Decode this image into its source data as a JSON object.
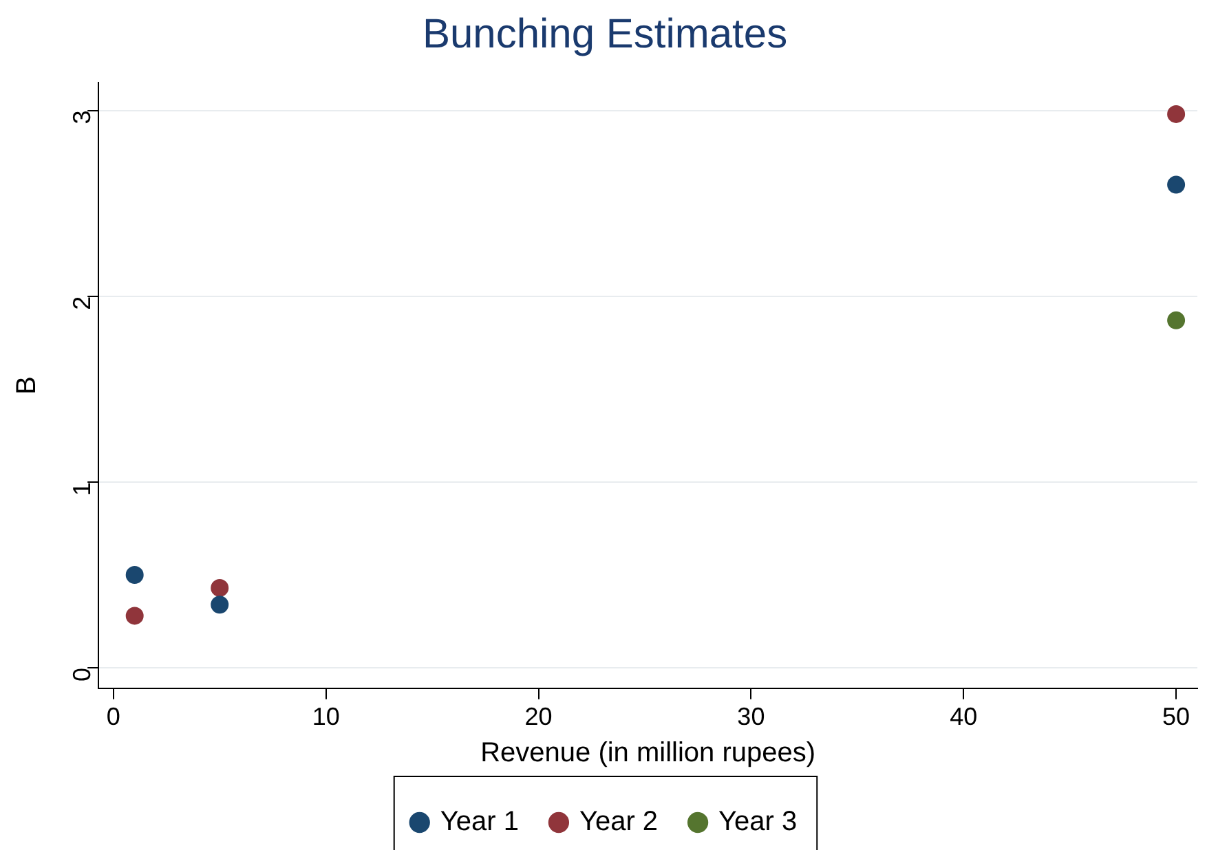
{
  "chart_data": {
    "type": "scatter",
    "title": "Bunching Estimates",
    "xlabel": "Revenue (in million rupees)",
    "ylabel": "B",
    "series": [
      {
        "name": "Year 1",
        "color": "#1a476f",
        "x": [
          1,
          5,
          50
        ],
        "values": [
          0.5,
          0.34,
          2.6
        ]
      },
      {
        "name": "Year 2",
        "color": "#90353b",
        "x": [
          1,
          5,
          50
        ],
        "values": [
          0.28,
          0.43,
          2.98
        ]
      },
      {
        "name": "Year 3",
        "color": "#55752f",
        "x": [
          50
        ],
        "values": [
          1.87
        ]
      }
    ],
    "xlim": [
      -0.7,
      51
    ],
    "xticks": [
      0,
      10,
      20,
      30,
      40,
      50
    ],
    "ylim": [
      -0.11,
      3.15
    ],
    "yticks": [
      0,
      1,
      2,
      3
    ],
    "grid": "y",
    "legend": "bottom",
    "marker": "circle"
  }
}
